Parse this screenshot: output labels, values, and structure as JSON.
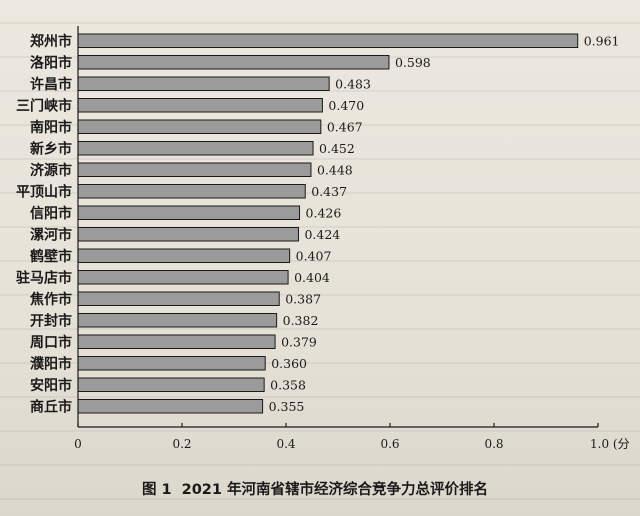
{
  "chart_data": {
    "type": "bar",
    "orientation": "horizontal",
    "categories": [
      "郑州市",
      "洛阳市",
      "许昌市",
      "三门峡市",
      "南阳市",
      "新乡市",
      "济源市",
      "平顶山市",
      "信阳市",
      "漯河市",
      "鹤壁市",
      "驻马店市",
      "焦作市",
      "开封市",
      "周口市",
      "濮阳市",
      "安阳市",
      "商丘市"
    ],
    "values": [
      0.961,
      0.598,
      0.483,
      0.47,
      0.467,
      0.452,
      0.448,
      0.437,
      0.426,
      0.424,
      0.407,
      0.404,
      0.387,
      0.382,
      0.379,
      0.36,
      0.358,
      0.355
    ],
    "value_labels": [
      "0.961",
      "0.598",
      "0.483",
      "0.470",
      "0.467",
      "0.452",
      "0.448",
      "0.437",
      "0.426",
      "0.424",
      "0.407",
      "0.404",
      "0.387",
      "0.382",
      "0.379",
      "0.360",
      "0.358",
      "0.355"
    ],
    "xlim": [
      0,
      1.0
    ],
    "xticks": [
      0,
      0.2,
      0.4,
      0.6,
      0.8,
      1.0
    ],
    "xtick_labels": [
      "0",
      "0.2",
      "0.4",
      "0.6",
      "0.8",
      "1.0 (分"
    ],
    "grid": false,
    "bar_color": "#9b9b9b",
    "title_prefix": "图 1",
    "title": "2021 年河南省辖市经济综合竞争力总评价排名"
  }
}
